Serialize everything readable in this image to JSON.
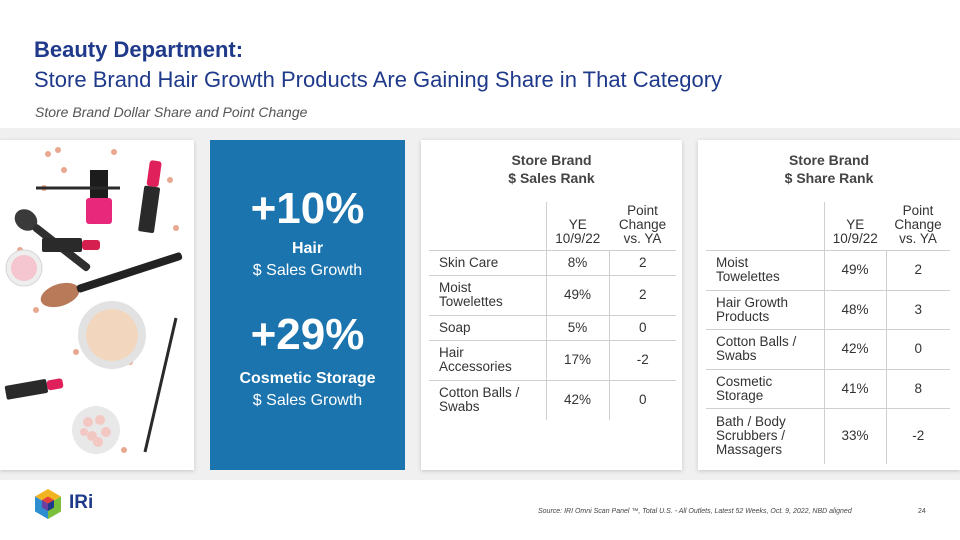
{
  "header": {
    "title_line1": "Beauty Department:",
    "title_line2": "Store Brand Hair Growth Products Are Gaining Share in That Category",
    "subtitle": "Store Brand Dollar Share and Point Change"
  },
  "highlights": {
    "stat1": {
      "value": "+10%",
      "label_bold": "Hair",
      "label": "$ Sales Growth"
    },
    "stat2": {
      "value": "+29%",
      "label_bold": "Cosmetic Storage",
      "label": "$ Sales Growth"
    }
  },
  "sales_rank_table": {
    "title_line1": "Store Brand",
    "title_line2": "$ Sales Rank",
    "col_ye_line1": "YE",
    "col_ye_line2": "10/9/22",
    "col_change_line1": "Point",
    "col_change_line2": "Change",
    "col_change_line3": "vs. YA",
    "rows": [
      {
        "category_line1": "Skin Care",
        "category_line2": "",
        "share": "8%",
        "change": "2"
      },
      {
        "category_line1": "Moist",
        "category_line2": "Towelettes",
        "share": "49%",
        "change": "2"
      },
      {
        "category_line1": "Soap",
        "category_line2": "",
        "share": "5%",
        "change": "0"
      },
      {
        "category_line1": "Hair",
        "category_line2": "Accessories",
        "share": "17%",
        "change": "-2"
      },
      {
        "category_line1": "Cotton Balls /",
        "category_line2": "Swabs",
        "share": "42%",
        "change": "0"
      }
    ]
  },
  "share_rank_table": {
    "title_line1": "Store Brand",
    "title_line2": "$ Share Rank",
    "col_ye_line1": "YE",
    "col_ye_line2": "10/9/22",
    "col_change_line1": "Point",
    "col_change_line2": "Change",
    "col_change_line3": "vs. YA",
    "rows": [
      {
        "category_line1": "Moist",
        "category_line2": "Towelettes",
        "category_line3": "",
        "share": "49%",
        "change": "2"
      },
      {
        "category_line1": "Hair Growth",
        "category_line2": "Products",
        "category_line3": "",
        "share": "48%",
        "change": "3"
      },
      {
        "category_line1": "Cotton Balls /",
        "category_line2": "Swabs",
        "category_line3": "",
        "share": "42%",
        "change": "0"
      },
      {
        "category_line1": "Cosmetic",
        "category_line2": "Storage",
        "category_line3": "",
        "share": "41%",
        "change": "8"
      },
      {
        "category_line1": "Bath / Body",
        "category_line2": "Scrubbers /",
        "category_line3": "Massagers",
        "share": "33%",
        "change": "-2"
      }
    ]
  },
  "footer": {
    "logo_text": "IRi",
    "source": "Source: IRI  Omni Scan Panel ™, Total U.S. - All Outlets, Latest 52 Weeks, Oct. 9, 2022, NBD aligned",
    "page_number": "24"
  },
  "colors": {
    "title_blue": "#1f3a8a",
    "panel_blue": "#1b74ae",
    "background_band": "#f0f0f0"
  }
}
